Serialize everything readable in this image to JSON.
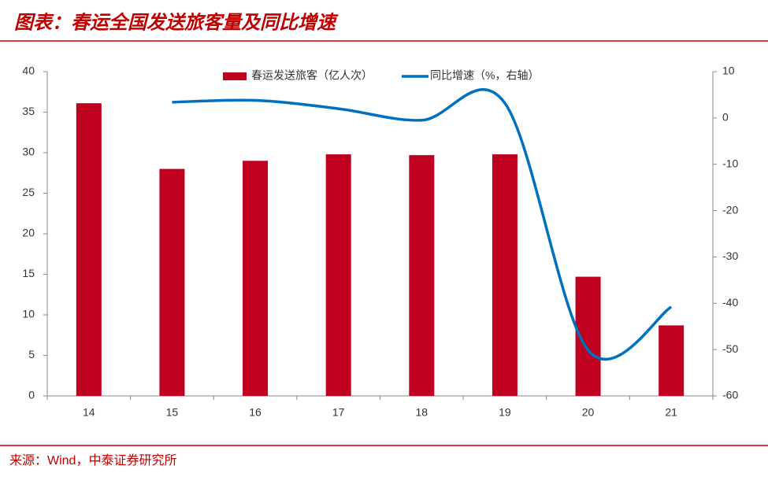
{
  "title": "图表：春运全国发送旅客量及同比增速",
  "source": "来源：Wind，中泰证券研究所",
  "chart_data": {
    "type": "bar-line",
    "categories": [
      "14",
      "15",
      "16",
      "17",
      "18",
      "19",
      "20",
      "21"
    ],
    "series": [
      {
        "name": "春运发送旅客（亿人次）",
        "type": "bar",
        "color": "#c0001f",
        "values": [
          36.1,
          28.0,
          29.0,
          29.8,
          29.7,
          29.8,
          14.7,
          8.7
        ]
      },
      {
        "name": "同比增速（%，右轴）",
        "type": "line",
        "axis": "y2",
        "color": "#0070c0",
        "values": [
          null,
          3.4,
          3.8,
          2.0,
          -0.5,
          3.2,
          -50.1,
          -40.8
        ]
      }
    ],
    "ylim": [
      0,
      40
    ],
    "yticks": [
      0,
      5,
      10,
      15,
      20,
      25,
      30,
      35,
      40
    ],
    "y2lim": [
      -60,
      10
    ],
    "y2ticks": [
      -60,
      -50,
      -40,
      -30,
      -20,
      -10,
      0,
      10
    ],
    "grid": false
  }
}
